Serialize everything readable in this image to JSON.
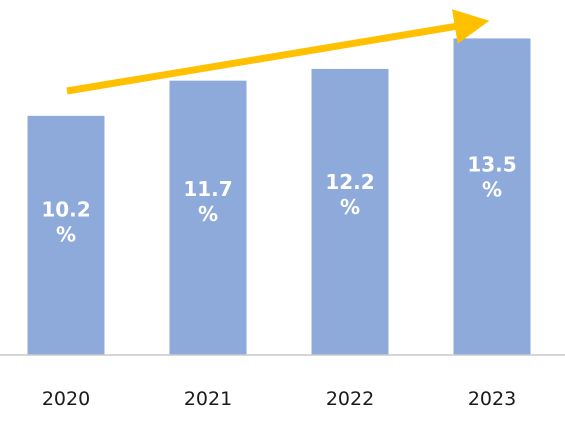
{
  "chart_data": {
    "type": "bar",
    "title": "",
    "xlabel": "",
    "ylabel": "",
    "categories": [
      "2020",
      "2021",
      "2022",
      "2023"
    ],
    "values": [
      10.2,
      11.7,
      12.2,
      13.5
    ],
    "value_labels": [
      [
        "10.2",
        "%"
      ],
      [
        "11.7",
        "%"
      ],
      [
        "12.2",
        "%"
      ],
      [
        "13.5",
        "%"
      ]
    ],
    "unit": "%",
    "ylim": [
      0,
      14.5
    ],
    "grid": false,
    "legend": "none",
    "bar_color": "#8eaadb",
    "trend_arrow": {
      "direction": "up",
      "color": "#ffc000"
    }
  }
}
